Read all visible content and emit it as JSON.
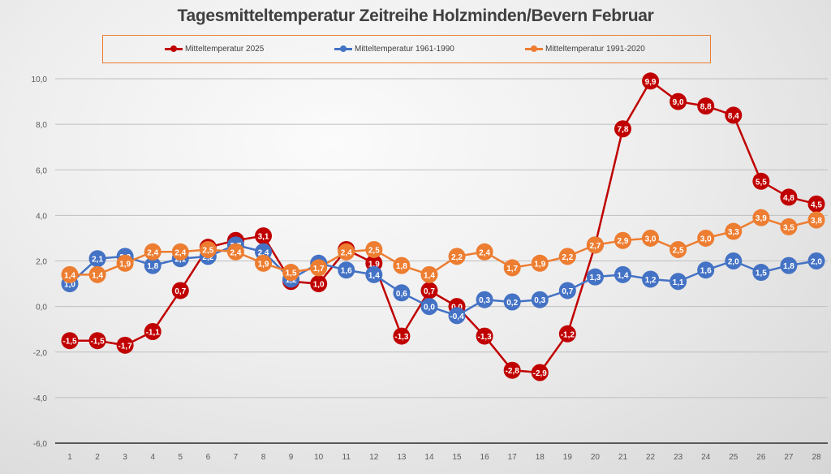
{
  "chart_data": {
    "type": "line",
    "title": "Tagesmitteltemperatur Zeitreihe Holzminden/Bevern Februar",
    "xlabel": "",
    "ylabel": "",
    "x": [
      1,
      2,
      3,
      4,
      5,
      6,
      7,
      8,
      9,
      10,
      11,
      12,
      13,
      14,
      15,
      16,
      17,
      18,
      19,
      20,
      21,
      22,
      23,
      24,
      25,
      26,
      27,
      28
    ],
    "x_tick_labels": [
      "1",
      "2",
      "3",
      "4",
      "5",
      "6",
      "7",
      "8",
      "9",
      "10",
      "11",
      "12",
      "13",
      "14",
      "15",
      "16",
      "17",
      "18",
      "19",
      "20",
      "21",
      "22",
      "23",
      "24",
      "25",
      "26",
      "27",
      "28"
    ],
    "ylim": [
      -6,
      10
    ],
    "y_ticks": [
      -6,
      -4,
      -2,
      0,
      2,
      4,
      6,
      8,
      10
    ],
    "y_tick_labels": [
      "-6,0",
      "-4,0",
      "-2,0",
      "0,0",
      "2,0",
      "4,0",
      "6,0",
      "8,0",
      "10,0"
    ],
    "grid": true,
    "legend_position": "top",
    "data_labels": true,
    "decimal_separator": ",",
    "series": [
      {
        "name": "Mitteltemperatur 2025",
        "color": "#c00000",
        "values": [
          -1.5,
          -1.5,
          -1.7,
          -1.1,
          0.7,
          2.6,
          2.9,
          3.1,
          1.1,
          1.0,
          2.5,
          1.9,
          -1.3,
          0.7,
          0.0,
          -1.3,
          -2.8,
          -2.9,
          -1.2,
          2.7,
          7.8,
          9.9,
          9.0,
          8.8,
          8.4,
          5.5,
          4.8,
          4.5
        ]
      },
      {
        "name": "Mitteltemperatur 1961-1990",
        "color": "#4472c4",
        "values": [
          1.0,
          2.1,
          2.2,
          1.8,
          2.1,
          2.2,
          2.7,
          2.4,
          1.2,
          1.9,
          1.6,
          1.4,
          0.6,
          0.0,
          -0.4,
          0.3,
          0.2,
          0.3,
          0.7,
          1.3,
          1.4,
          1.2,
          1.1,
          1.6,
          2.0,
          1.5,
          1.8,
          2.0
        ]
      },
      {
        "name": "Mitteltemperatur 1991-2020",
        "color": "#ed7d31",
        "values": [
          1.4,
          1.4,
          1.9,
          2.4,
          2.4,
          2.5,
          2.4,
          1.9,
          1.5,
          1.7,
          2.4,
          2.5,
          1.8,
          1.4,
          2.2,
          2.4,
          1.7,
          1.9,
          2.2,
          2.7,
          2.9,
          3.0,
          2.5,
          3.0,
          3.3,
          3.9,
          3.5,
          3.8
        ]
      }
    ]
  }
}
